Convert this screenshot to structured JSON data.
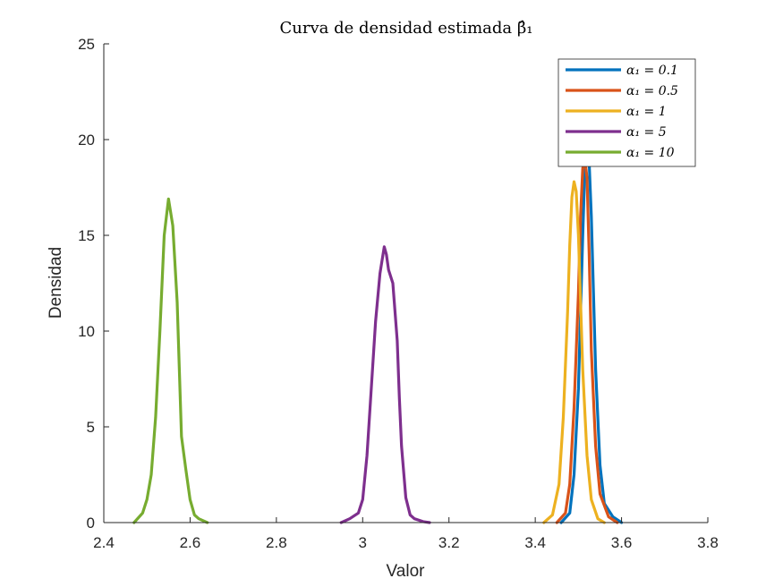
{
  "chart_data": {
    "type": "line",
    "title": "Curva de densidad estimada β̂₁",
    "xlabel": "Valor",
    "ylabel": "Densidad",
    "xlim": [
      2.4,
      3.8
    ],
    "ylim": [
      0,
      25
    ],
    "xticks": [
      "2.4",
      "2.6",
      "2.8",
      "3",
      "3.2",
      "3.4",
      "3.6",
      "3.8"
    ],
    "yticks": [
      "0",
      "5",
      "10",
      "15",
      "20",
      "25"
    ],
    "grid": false,
    "legend_position": "top-right",
    "series": [
      {
        "name": "α₁ = 0.1",
        "color": "#0072BD",
        "x": [
          3.46,
          3.48,
          3.49,
          3.5,
          3.505,
          3.51,
          3.515,
          3.52,
          3.525,
          3.53,
          3.535,
          3.54,
          3.55,
          3.56,
          3.58,
          3.6
        ],
        "y": [
          0,
          0.5,
          2.5,
          7,
          11,
          15,
          18.5,
          19.3,
          18.8,
          16,
          12,
          8,
          3,
          1,
          0.3,
          0
        ]
      },
      {
        "name": "α₁ = 0.5",
        "color": "#D95319",
        "x": [
          3.45,
          3.47,
          3.48,
          3.49,
          3.5,
          3.505,
          3.51,
          3.515,
          3.52,
          3.525,
          3.53,
          3.54,
          3.55,
          3.57,
          3.59
        ],
        "y": [
          0,
          0.5,
          2,
          6,
          12,
          16,
          18.5,
          19,
          18,
          14,
          9,
          4,
          1.5,
          0.3,
          0
        ]
      },
      {
        "name": "α₁ = 1",
        "color": "#EDB120",
        "x": [
          3.42,
          3.44,
          3.455,
          3.465,
          3.475,
          3.48,
          3.485,
          3.49,
          3.495,
          3.5,
          3.505,
          3.51,
          3.52,
          3.53,
          3.545,
          3.56
        ],
        "y": [
          0,
          0.4,
          2,
          5.5,
          11,
          14.5,
          17,
          17.8,
          17.3,
          15,
          11.5,
          8,
          3.5,
          1.2,
          0.2,
          0
        ]
      },
      {
        "name": "α₁ = 5",
        "color": "#7E2F8E",
        "x": [
          2.95,
          2.97,
          2.99,
          3.0,
          3.01,
          3.02,
          3.03,
          3.04,
          3.05,
          3.055,
          3.06,
          3.07,
          3.08,
          3.085,
          3.09,
          3.1,
          3.11,
          3.12,
          3.14,
          3.155
        ],
        "y": [
          0,
          0.2,
          0.5,
          1.2,
          3.5,
          7,
          10.5,
          13,
          14.4,
          14,
          13.2,
          12.5,
          9.5,
          6.5,
          4,
          1.3,
          0.4,
          0.2,
          0.05,
          0
        ]
      },
      {
        "name": "α₁ = 10",
        "color": "#77AC30",
        "x": [
          2.47,
          2.49,
          2.5,
          2.51,
          2.52,
          2.53,
          2.54,
          2.55,
          2.56,
          2.57,
          2.575,
          2.58,
          2.59,
          2.6,
          2.61,
          2.62,
          2.64
        ],
        "y": [
          0,
          0.5,
          1.2,
          2.5,
          5.5,
          10,
          15,
          16.9,
          15.5,
          11.5,
          8,
          4.5,
          2.8,
          1.2,
          0.4,
          0.2,
          0
        ]
      }
    ]
  }
}
